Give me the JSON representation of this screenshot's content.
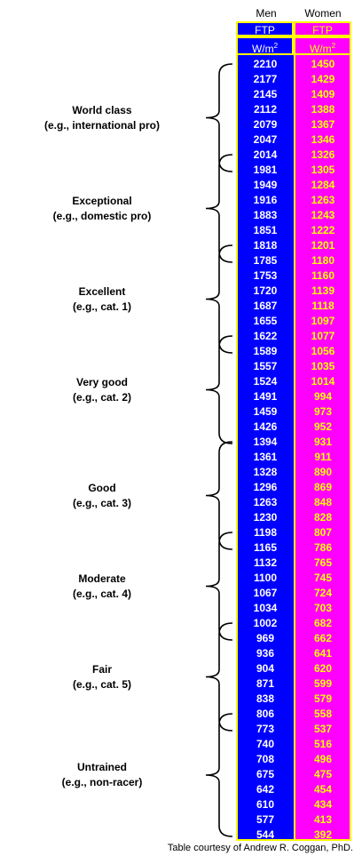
{
  "chart_data": {
    "type": "table",
    "columns": [
      {
        "group": "Men",
        "metric": "FTP",
        "unit": "W/m2"
      },
      {
        "group": "Women",
        "metric": "FTP",
        "unit": "W/m2"
      }
    ],
    "men": [
      2210,
      2177,
      2145,
      2112,
      2079,
      2047,
      2014,
      1981,
      1949,
      1916,
      1883,
      1851,
      1818,
      1785,
      1753,
      1720,
      1687,
      1655,
      1622,
      1589,
      1557,
      1524,
      1491,
      1459,
      1426,
      1394,
      1361,
      1328,
      1296,
      1263,
      1230,
      1198,
      1165,
      1132,
      1100,
      1067,
      1034,
      1002,
      969,
      936,
      904,
      871,
      838,
      806,
      773,
      740,
      708,
      675,
      642,
      610,
      577,
      544
    ],
    "women": [
      1450,
      1429,
      1409,
      1388,
      1367,
      1346,
      1326,
      1305,
      1284,
      1263,
      1243,
      1222,
      1201,
      1180,
      1160,
      1139,
      1118,
      1097,
      1077,
      1056,
      1035,
      1014,
      994,
      973,
      952,
      931,
      911,
      890,
      869,
      848,
      828,
      807,
      786,
      765,
      745,
      724,
      703,
      682,
      662,
      641,
      620,
      599,
      579,
      558,
      537,
      516,
      496,
      475,
      454,
      434,
      413,
      392
    ],
    "categories": [
      {
        "name": "World class",
        "example": "(e.g., international pro)",
        "rows": [
          0,
          7
        ]
      },
      {
        "name": "Exceptional",
        "example": "(e.g., domestic pro)",
        "rows": [
          6,
          13
        ]
      },
      {
        "name": "Excellent",
        "example": "(e.g., cat. 1)",
        "rows": [
          12,
          19
        ]
      },
      {
        "name": "Very good",
        "example": "(e.g., cat. 2)",
        "rows": [
          18,
          25
        ]
      },
      {
        "name": "Good",
        "example": "(e.g., cat. 3)",
        "rows": [
          25,
          32
        ]
      },
      {
        "name": "Moderate",
        "example": "(e.g., cat. 4)",
        "rows": [
          31,
          38
        ]
      },
      {
        "name": "Fair",
        "example": "(e.g., cat. 5)",
        "rows": [
          37,
          44
        ]
      },
      {
        "name": "Untrained",
        "example": "(e.g., non-racer)",
        "rows": [
          43,
          51
        ]
      }
    ],
    "colors": {
      "men_fill": "#0000ff",
      "women_fill": "#ff00ff",
      "border": "#ffff00",
      "men_text": "#ffffff",
      "women_text": "#ffff00"
    }
  },
  "footer": "Table courtesy of Andrew R. Coggan, PhD."
}
